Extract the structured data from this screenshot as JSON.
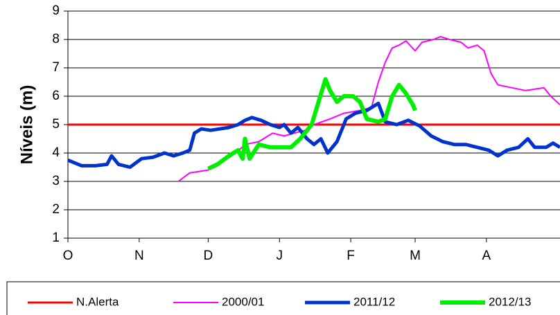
{
  "chart_data": {
    "type": "line",
    "y_label": "Níveis (m)",
    "xlim": [
      0,
      214
    ],
    "ylim": [
      1,
      9
    ],
    "xticks": [
      {
        "value": 0,
        "label": "O"
      },
      {
        "value": 31,
        "label": "N"
      },
      {
        "value": 61,
        "label": "D"
      },
      {
        "value": 92,
        "label": "J"
      },
      {
        "value": 123,
        "label": "F"
      },
      {
        "value": 151,
        "label": "M"
      },
      {
        "value": 182,
        "label": "A"
      }
    ],
    "yticks": [
      1,
      2,
      3,
      4,
      5,
      6,
      7,
      8,
      9
    ],
    "grid": true,
    "legend": "bottom",
    "series": [
      {
        "name": "N.Alerta",
        "color": "#ff0000",
        "line_width": 3,
        "x": [
          0,
          214
        ],
        "values": [
          5,
          5
        ]
      },
      {
        "name": "2000/01",
        "color": "#ff00ff",
        "line_width": 2,
        "x": [
          48,
          53,
          61,
          64,
          73,
          77,
          83,
          89,
          94,
          103,
          107,
          114,
          120,
          127,
          132,
          135,
          138,
          141,
          144,
          147,
          151,
          154,
          159,
          162,
          166,
          171,
          174,
          178,
          181,
          184,
          187,
          193,
          199,
          207,
          210,
          214
        ],
        "values": [
          3.0,
          3.3,
          3.4,
          3.5,
          4.0,
          4.3,
          4.4,
          4.7,
          4.6,
          4.8,
          5.0,
          5.2,
          5.4,
          5.5,
          5.6,
          6.5,
          7.2,
          7.7,
          7.8,
          7.95,
          7.6,
          7.9,
          8.0,
          8.1,
          8.0,
          7.9,
          7.7,
          7.8,
          7.6,
          6.8,
          6.4,
          6.3,
          6.2,
          6.3,
          6.0,
          5.7
        ]
      },
      {
        "name": "2011/12",
        "color": "#0033cc",
        "line_width": 5,
        "x": [
          0,
          6,
          12,
          17,
          19,
          22,
          27,
          32,
          37,
          42,
          46,
          50,
          53,
          55,
          58,
          62,
          66,
          70,
          74,
          77,
          80,
          84,
          88,
          92,
          94,
          97,
          100,
          104,
          107,
          110,
          113,
          117,
          121,
          125,
          130,
          135,
          138,
          143,
          148,
          153,
          158,
          163,
          168,
          173,
          178,
          183,
          187,
          191,
          196,
          200,
          203,
          208,
          211,
          214
        ],
        "values": [
          3.75,
          3.55,
          3.55,
          3.6,
          3.9,
          3.6,
          3.5,
          3.8,
          3.85,
          4.0,
          3.9,
          4.0,
          4.1,
          4.7,
          4.85,
          4.8,
          4.85,
          4.9,
          5.0,
          5.15,
          5.25,
          5.15,
          5.0,
          4.9,
          5.0,
          4.7,
          4.9,
          4.5,
          4.3,
          4.5,
          4.0,
          4.4,
          5.2,
          5.4,
          5.5,
          5.75,
          5.1,
          5.0,
          5.15,
          4.95,
          4.6,
          4.4,
          4.3,
          4.3,
          4.2,
          4.1,
          3.9,
          4.1,
          4.2,
          4.5,
          4.2,
          4.2,
          4.35,
          4.2
        ]
      },
      {
        "name": "2012/13",
        "color": "#00ee00",
        "line_width": 6,
        "x": [
          61,
          65,
          70,
          74,
          76,
          77,
          79,
          83,
          88,
          92,
          97,
          101,
          106,
          109,
          112,
          114,
          117,
          120,
          124,
          127,
          130,
          135,
          138,
          141,
          144,
          147,
          150,
          151
        ],
        "values": [
          3.45,
          3.6,
          3.9,
          4.1,
          3.8,
          4.5,
          3.8,
          4.3,
          4.2,
          4.2,
          4.2,
          4.5,
          5.0,
          5.8,
          6.6,
          6.2,
          5.8,
          6.0,
          6.0,
          5.8,
          5.2,
          5.1,
          5.2,
          6.0,
          6.4,
          6.1,
          5.7,
          5.5
        ]
      }
    ]
  }
}
